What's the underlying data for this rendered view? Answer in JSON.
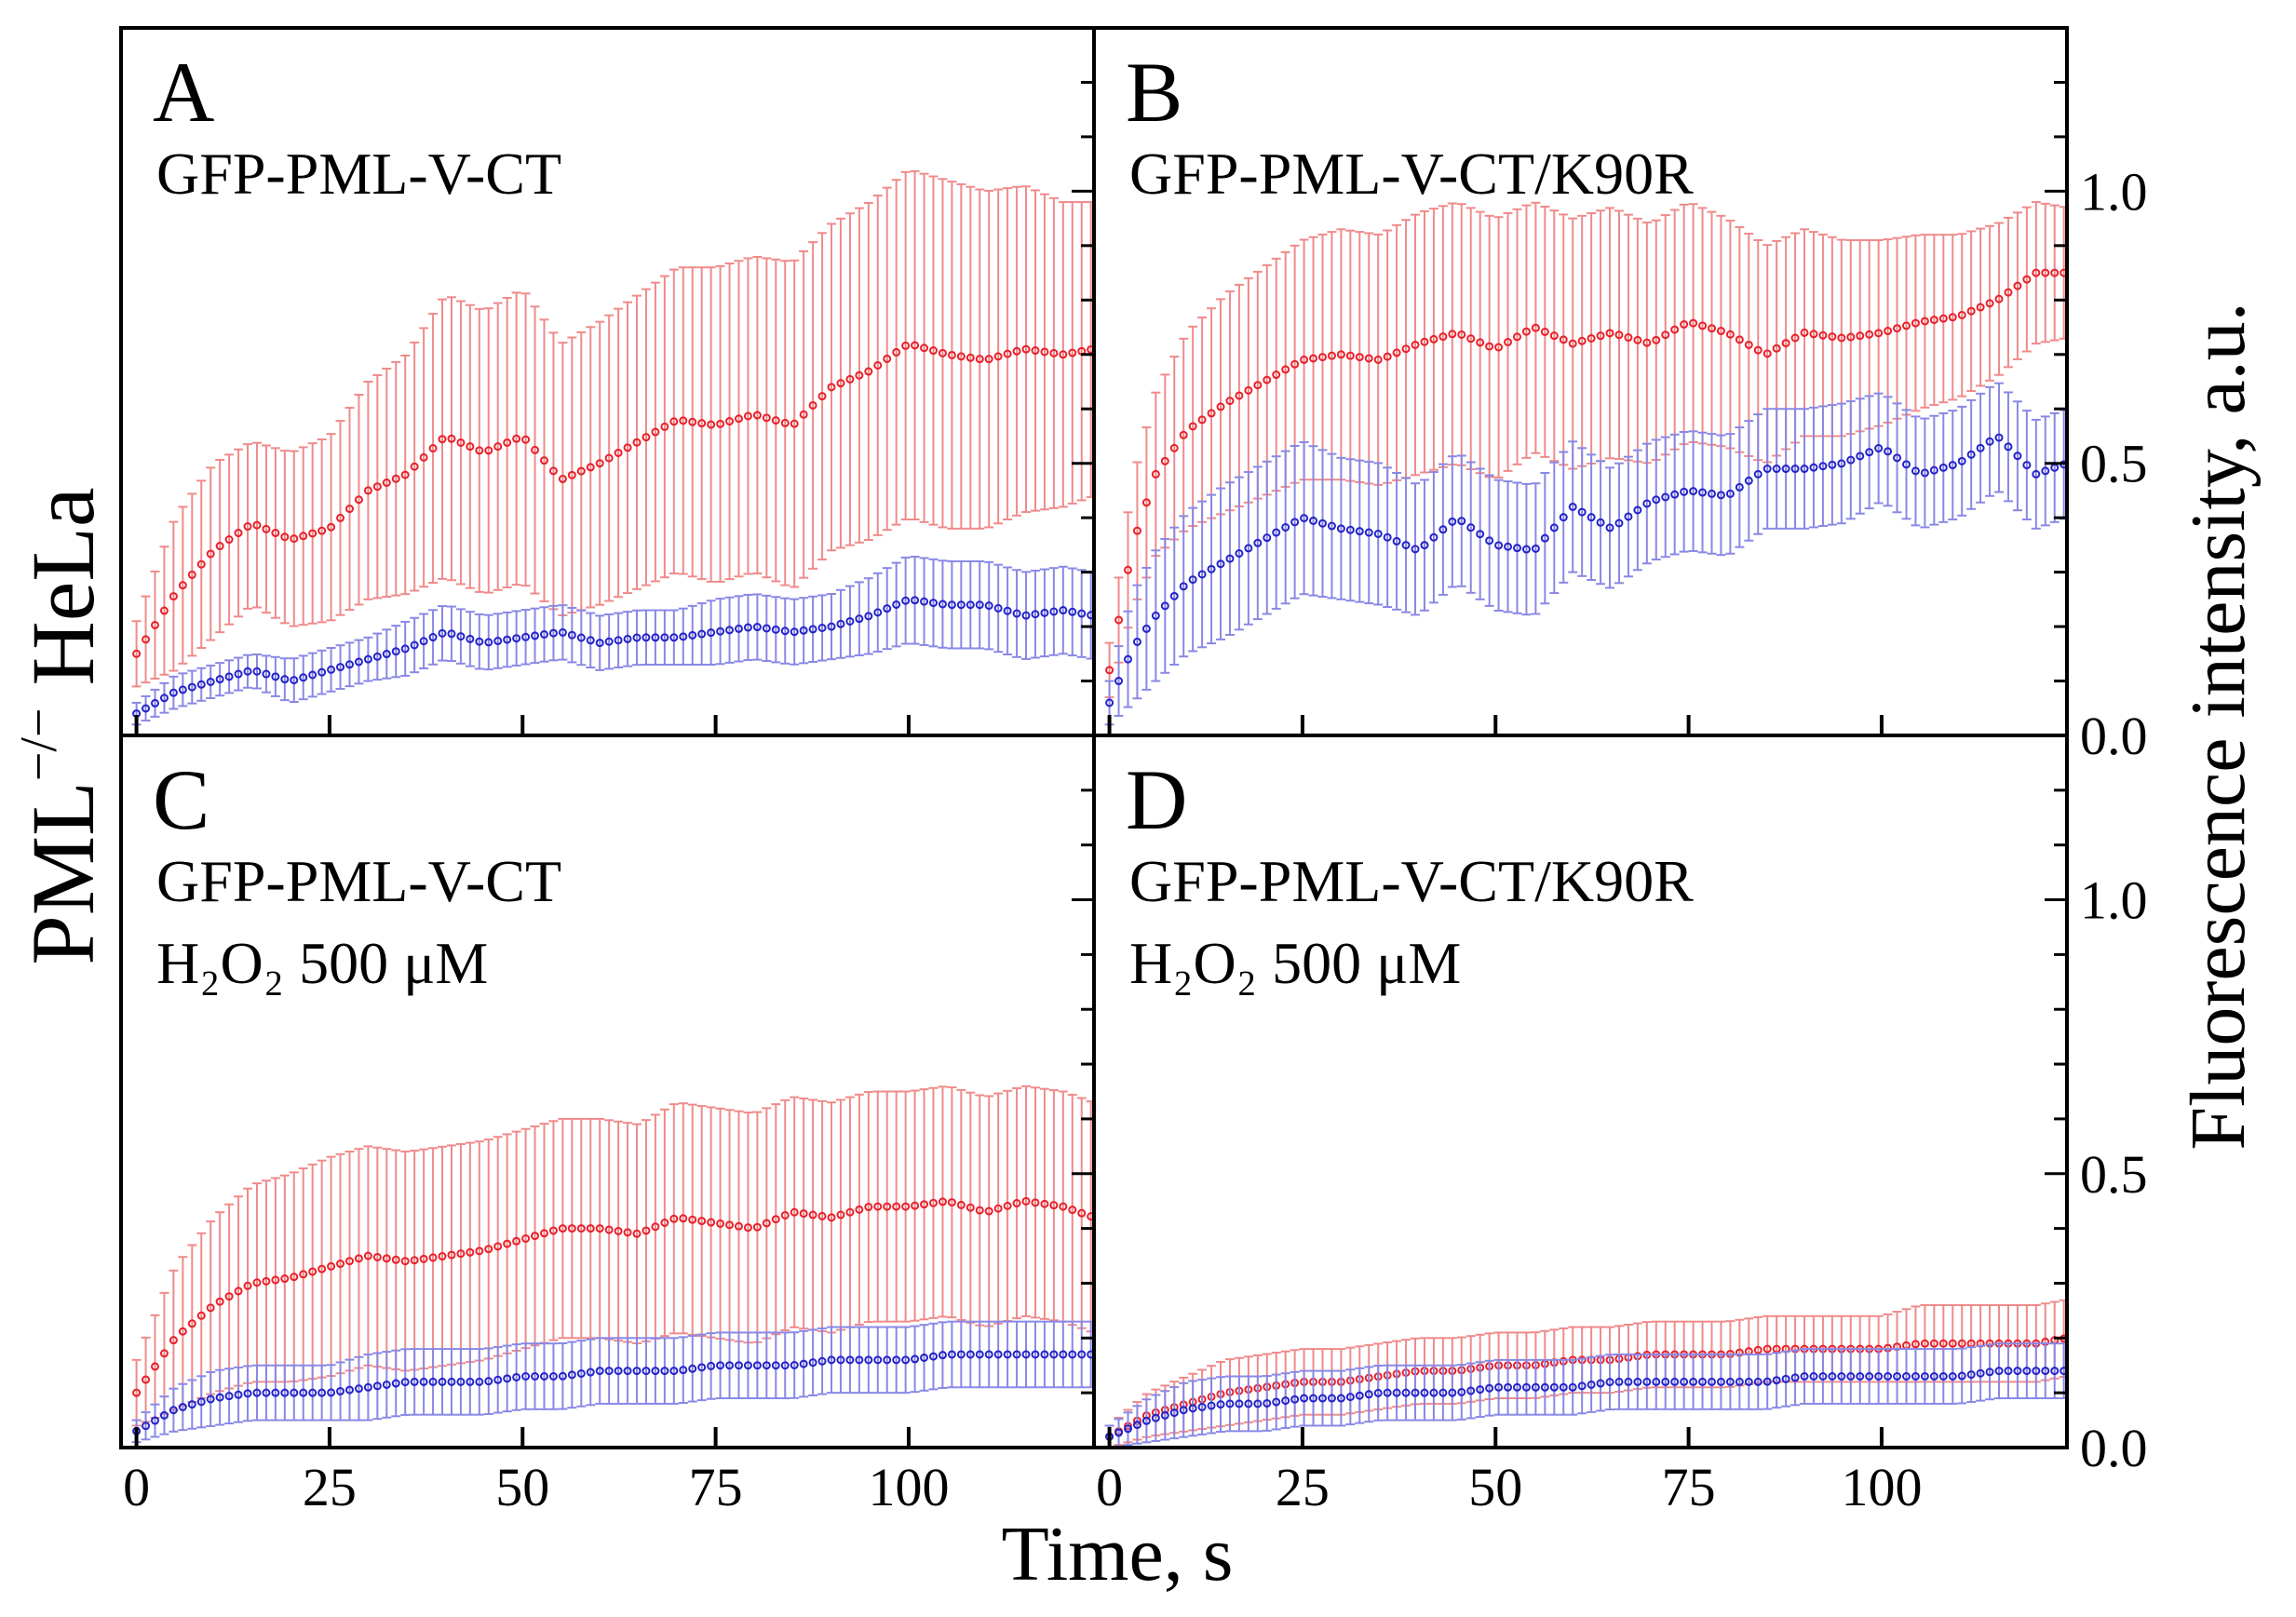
{
  "figure": {
    "left_ylabel": {
      "main": "PML",
      "sup": "−/−",
      "rest": " HeLa"
    },
    "right_ylabel": "Fluorescence intensity, a.u.",
    "xlabel": "Time, s",
    "colors": {
      "red": "#e8202a",
      "blue": "#2323c8",
      "red_err": "#f08a8a",
      "blue_err": "#8888e6"
    }
  },
  "chart_data": [
    {
      "panel": "A",
      "type": "scatter",
      "labels": [
        "GFP-PML-V-CT"
      ],
      "xlim": [
        -2,
        124
      ],
      "ylim": [
        0,
        1.3
      ],
      "x_ticks": [
        0,
        25,
        50,
        75,
        100
      ],
      "y_ticks": [],
      "series": [
        {
          "name": "red",
          "color": "#e8202a",
          "x": [
            0,
            5,
            10,
            15,
            20,
            25,
            30,
            35,
            40,
            45,
            50,
            55,
            60,
            65,
            70,
            75,
            80,
            85,
            90,
            95,
            100,
            105,
            110,
            115,
            120,
            124
          ],
          "y": [
            0.15,
            0.26,
            0.34,
            0.39,
            0.36,
            0.38,
            0.45,
            0.48,
            0.55,
            0.52,
            0.55,
            0.47,
            0.5,
            0.54,
            0.58,
            0.57,
            0.59,
            0.57,
            0.64,
            0.67,
            0.72,
            0.7,
            0.69,
            0.71,
            0.7,
            0.71
          ],
          "err": [
            0.06,
            0.14,
            0.16,
            0.15,
            0.16,
            0.17,
            0.2,
            0.22,
            0.26,
            0.26,
            0.27,
            0.25,
            0.26,
            0.27,
            0.28,
            0.29,
            0.29,
            0.3,
            0.3,
            0.31,
            0.32,
            0.32,
            0.31,
            0.3,
            0.28,
            0.27
          ]
        },
        {
          "name": "blue",
          "color": "#2323c8",
          "x": [
            0,
            5,
            10,
            15,
            20,
            25,
            30,
            35,
            40,
            45,
            50,
            55,
            60,
            65,
            70,
            75,
            80,
            85,
            90,
            95,
            100,
            105,
            110,
            115,
            120,
            124
          ],
          "y": [
            0.04,
            0.08,
            0.1,
            0.12,
            0.1,
            0.12,
            0.14,
            0.16,
            0.19,
            0.17,
            0.18,
            0.19,
            0.17,
            0.18,
            0.18,
            0.19,
            0.2,
            0.19,
            0.2,
            0.22,
            0.25,
            0.24,
            0.24,
            0.22,
            0.23,
            0.22
          ],
          "err": [
            0.02,
            0.03,
            0.03,
            0.03,
            0.04,
            0.04,
            0.04,
            0.05,
            0.05,
            0.05,
            0.05,
            0.05,
            0.05,
            0.05,
            0.05,
            0.06,
            0.06,
            0.06,
            0.06,
            0.07,
            0.08,
            0.08,
            0.08,
            0.08,
            0.08,
            0.08
          ]
        }
      ]
    },
    {
      "panel": "B",
      "type": "scatter",
      "labels": [
        "GFP-PML-V-CT/K90R"
      ],
      "xlim": [
        -2,
        124
      ],
      "ylim": [
        0,
        1.3
      ],
      "x_ticks": [
        0,
        25,
        50,
        75,
        100
      ],
      "y_ticks": [
        0.0,
        0.5,
        1.0
      ],
      "y_tick_labels": [
        "0.0",
        "0.5",
        "1.0"
      ],
      "series": [
        {
          "name": "red",
          "color": "#e8202a",
          "x": [
            0,
            3,
            6,
            10,
            15,
            20,
            25,
            30,
            35,
            40,
            45,
            50,
            55,
            60,
            65,
            70,
            75,
            80,
            85,
            90,
            95,
            100,
            105,
            110,
            115,
            120,
            124
          ],
          "y": [
            0.12,
            0.35,
            0.48,
            0.56,
            0.61,
            0.65,
            0.69,
            0.7,
            0.69,
            0.72,
            0.74,
            0.71,
            0.75,
            0.72,
            0.74,
            0.72,
            0.76,
            0.74,
            0.7,
            0.74,
            0.73,
            0.74,
            0.76,
            0.77,
            0.8,
            0.85,
            0.85
          ],
          "err": [
            0.05,
            0.12,
            0.15,
            0.18,
            0.2,
            0.21,
            0.22,
            0.23,
            0.23,
            0.24,
            0.24,
            0.24,
            0.23,
            0.23,
            0.23,
            0.22,
            0.22,
            0.21,
            0.2,
            0.19,
            0.18,
            0.17,
            0.16,
            0.15,
            0.14,
            0.13,
            0.12
          ]
        },
        {
          "name": "blue",
          "color": "#2323c8",
          "x": [
            0,
            3,
            6,
            10,
            15,
            20,
            25,
            30,
            35,
            40,
            45,
            50,
            55,
            60,
            65,
            70,
            75,
            80,
            85,
            90,
            95,
            100,
            105,
            110,
            115,
            120,
            124
          ],
          "y": [
            0.06,
            0.16,
            0.22,
            0.28,
            0.32,
            0.36,
            0.4,
            0.38,
            0.37,
            0.34,
            0.4,
            0.35,
            0.34,
            0.42,
            0.38,
            0.43,
            0.45,
            0.44,
            0.49,
            0.49,
            0.5,
            0.53,
            0.48,
            0.5,
            0.55,
            0.48,
            0.5
          ],
          "err": [
            0.04,
            0.1,
            0.12,
            0.13,
            0.14,
            0.14,
            0.14,
            0.13,
            0.13,
            0.12,
            0.12,
            0.12,
            0.12,
            0.12,
            0.11,
            0.11,
            0.11,
            0.11,
            0.11,
            0.11,
            0.11,
            0.1,
            0.1,
            0.1,
            0.1,
            0.1,
            0.1
          ]
        }
      ]
    },
    {
      "panel": "C",
      "type": "scatter",
      "labels": [
        "GFP-PML-V-CT",
        "H₂O₂ 500 μM"
      ],
      "xlim": [
        -2,
        124
      ],
      "ylim": [
        0,
        1.3
      ],
      "x_ticks": [
        0,
        25,
        50,
        75,
        100
      ],
      "x_tick_labels": [
        "0",
        "25",
        "50",
        "75",
        "100"
      ],
      "y_ticks": [],
      "series": [
        {
          "name": "red",
          "color": "#e8202a",
          "x": [
            0,
            5,
            10,
            15,
            20,
            25,
            30,
            35,
            40,
            45,
            50,
            55,
            60,
            65,
            70,
            75,
            80,
            85,
            90,
            95,
            100,
            105,
            110,
            115,
            120,
            124
          ],
          "y": [
            0.1,
            0.2,
            0.26,
            0.3,
            0.31,
            0.33,
            0.35,
            0.34,
            0.35,
            0.36,
            0.38,
            0.4,
            0.4,
            0.39,
            0.42,
            0.41,
            0.4,
            0.43,
            0.42,
            0.44,
            0.44,
            0.45,
            0.43,
            0.45,
            0.44,
            0.42
          ],
          "err": [
            0.06,
            0.13,
            0.16,
            0.18,
            0.19,
            0.2,
            0.2,
            0.2,
            0.2,
            0.2,
            0.2,
            0.2,
            0.2,
            0.2,
            0.21,
            0.21,
            0.21,
            0.21,
            0.21,
            0.21,
            0.21,
            0.21,
            0.21,
            0.21,
            0.21,
            0.21
          ]
        },
        {
          "name": "blue",
          "color": "#2323c8",
          "x": [
            0,
            5,
            10,
            15,
            20,
            25,
            30,
            35,
            40,
            45,
            50,
            55,
            60,
            65,
            70,
            75,
            80,
            85,
            90,
            95,
            100,
            105,
            110,
            115,
            120,
            124
          ],
          "y": [
            0.03,
            0.07,
            0.09,
            0.1,
            0.1,
            0.1,
            0.11,
            0.12,
            0.12,
            0.12,
            0.13,
            0.13,
            0.14,
            0.14,
            0.14,
            0.15,
            0.15,
            0.15,
            0.16,
            0.16,
            0.16,
            0.17,
            0.17,
            0.17,
            0.17,
            0.17
          ],
          "err": [
            0.02,
            0.04,
            0.05,
            0.05,
            0.05,
            0.05,
            0.06,
            0.06,
            0.06,
            0.06,
            0.06,
            0.06,
            0.06,
            0.06,
            0.06,
            0.06,
            0.06,
            0.06,
            0.06,
            0.06,
            0.06,
            0.06,
            0.06,
            0.06,
            0.06,
            0.06
          ]
        }
      ]
    },
    {
      "panel": "D",
      "type": "scatter",
      "labels": [
        "GFP-PML-V-CT/K90R",
        "H₂O₂ 500 μM"
      ],
      "xlim": [
        -2,
        124
      ],
      "ylim": [
        0,
        1.3
      ],
      "x_ticks": [
        0,
        25,
        50,
        75,
        100
      ],
      "x_tick_labels": [
        "0",
        "25",
        "50",
        "75",
        "100"
      ],
      "y_ticks": [
        0.0,
        0.5,
        1.0
      ],
      "y_tick_labels": [
        "0.0",
        "0.5",
        "1.0"
      ],
      "series": [
        {
          "name": "red",
          "color": "#e8202a",
          "x": [
            0,
            5,
            10,
            15,
            20,
            25,
            30,
            35,
            40,
            45,
            50,
            55,
            60,
            65,
            70,
            75,
            80,
            85,
            90,
            95,
            100,
            105,
            110,
            115,
            120,
            124
          ],
          "y": [
            0.02,
            0.06,
            0.08,
            0.1,
            0.11,
            0.12,
            0.12,
            0.13,
            0.14,
            0.14,
            0.15,
            0.15,
            0.16,
            0.16,
            0.17,
            0.17,
            0.17,
            0.18,
            0.18,
            0.18,
            0.18,
            0.19,
            0.19,
            0.19,
            0.19,
            0.2
          ],
          "err": [
            0.02,
            0.04,
            0.05,
            0.06,
            0.06,
            0.06,
            0.06,
            0.06,
            0.06,
            0.06,
            0.06,
            0.06,
            0.06,
            0.06,
            0.06,
            0.06,
            0.06,
            0.06,
            0.06,
            0.06,
            0.06,
            0.07,
            0.07,
            0.07,
            0.07,
            0.07
          ]
        },
        {
          "name": "blue",
          "color": "#2323c8",
          "x": [
            0,
            5,
            10,
            15,
            20,
            25,
            30,
            35,
            40,
            45,
            50,
            55,
            60,
            65,
            70,
            75,
            80,
            85,
            90,
            95,
            100,
            105,
            110,
            115,
            120,
            124
          ],
          "y": [
            0.02,
            0.05,
            0.07,
            0.08,
            0.08,
            0.09,
            0.09,
            0.1,
            0.1,
            0.1,
            0.11,
            0.11,
            0.11,
            0.12,
            0.12,
            0.12,
            0.12,
            0.12,
            0.13,
            0.13,
            0.13,
            0.13,
            0.13,
            0.14,
            0.14,
            0.14
          ],
          "err": [
            0.02,
            0.04,
            0.05,
            0.05,
            0.05,
            0.05,
            0.05,
            0.05,
            0.05,
            0.05,
            0.05,
            0.05,
            0.05,
            0.05,
            0.05,
            0.05,
            0.05,
            0.05,
            0.05,
            0.05,
            0.05,
            0.05,
            0.05,
            0.05,
            0.05,
            0.05
          ]
        }
      ]
    }
  ]
}
